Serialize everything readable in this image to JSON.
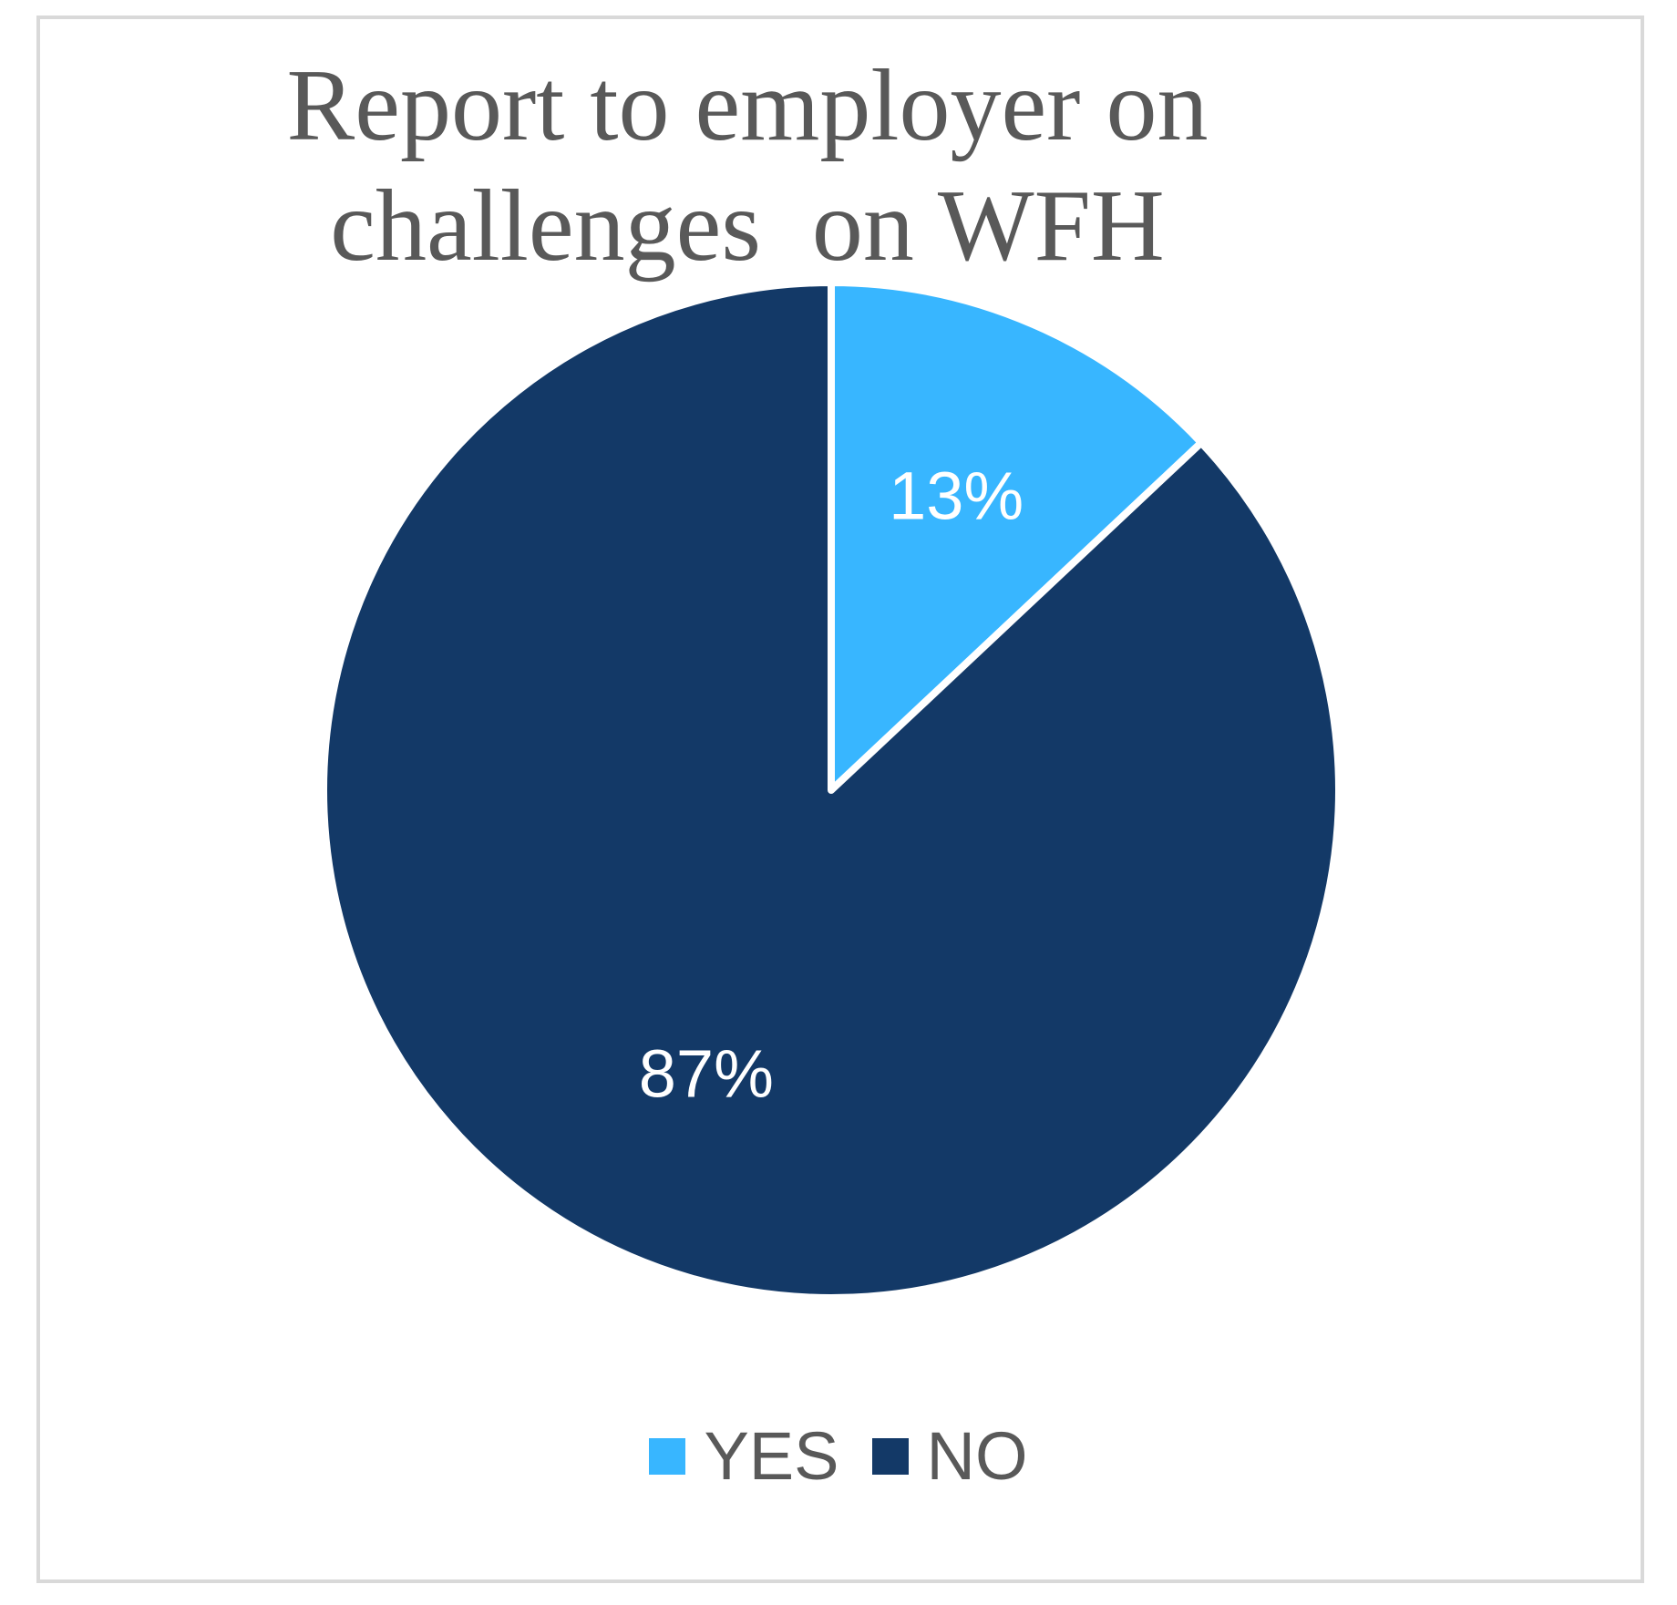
{
  "chart_data": {
    "type": "pie",
    "title_lines": [
      "Report to employer on",
      "challenges  on WFH"
    ],
    "slices": [
      {
        "name": "YES",
        "value": 13,
        "label": "13%",
        "color": "#38B6FF"
      },
      {
        "name": "NO",
        "value": 87,
        "label": "87%",
        "color": "#133967"
      }
    ],
    "legend_position": "bottom",
    "start_angle": "12 o'clock",
    "direction": "clockwise"
  }
}
